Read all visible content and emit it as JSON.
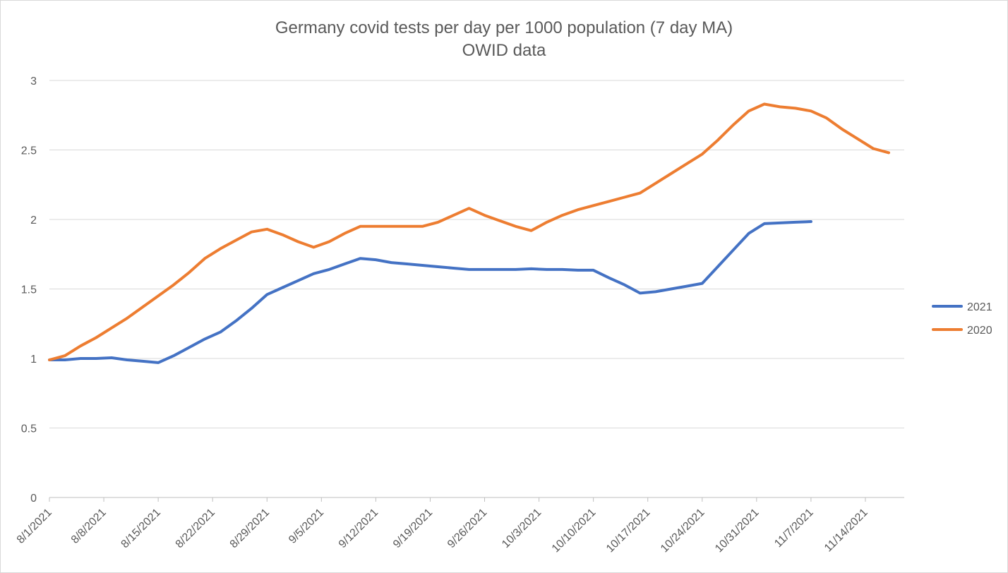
{
  "chart_data": {
    "type": "line",
    "title": "Germany covid tests per day per 1000 population (7 day MA)",
    "subtitle": "OWID data",
    "xlabel": "",
    "ylabel": "",
    "ylim": [
      0,
      3
    ],
    "yticks": [
      "0",
      "0.5",
      "1",
      "1.5",
      "2",
      "2.5",
      "3"
    ],
    "grid": true,
    "legend_position": "right",
    "x_categories": [
      "8/1/2021",
      "8/8/2021",
      "8/15/2021",
      "8/22/2021",
      "8/29/2021",
      "9/5/2021",
      "9/12/2021",
      "9/19/2021",
      "9/26/2021",
      "10/3/2021",
      "10/10/2021",
      "10/17/2021",
      "10/24/2021",
      "10/31/2021",
      "11/7/2021",
      "11/14/2021"
    ],
    "day_count": 110,
    "series": [
      {
        "name": "2021",
        "color": "#4472c4",
        "points": [
          [
            0,
            0.99
          ],
          [
            2,
            0.99
          ],
          [
            4,
            1.0
          ],
          [
            6,
            1.0
          ],
          [
            8,
            1.005
          ],
          [
            10,
            0.99
          ],
          [
            12,
            0.98
          ],
          [
            14,
            0.97
          ],
          [
            16,
            1.02
          ],
          [
            18,
            1.08
          ],
          [
            20,
            1.14
          ],
          [
            22,
            1.19
          ],
          [
            24,
            1.27
          ],
          [
            26,
            1.36
          ],
          [
            28,
            1.46
          ],
          [
            30,
            1.51
          ],
          [
            32,
            1.56
          ],
          [
            34,
            1.61
          ],
          [
            36,
            1.64
          ],
          [
            38,
            1.68
          ],
          [
            40,
            1.72
          ],
          [
            42,
            1.71
          ],
          [
            44,
            1.69
          ],
          [
            46,
            1.68
          ],
          [
            48,
            1.67
          ],
          [
            50,
            1.66
          ],
          [
            52,
            1.65
          ],
          [
            54,
            1.64
          ],
          [
            56,
            1.64
          ],
          [
            58,
            1.64
          ],
          [
            60,
            1.64
          ],
          [
            62,
            1.645
          ],
          [
            64,
            1.64
          ],
          [
            66,
            1.64
          ],
          [
            68,
            1.635
          ],
          [
            70,
            1.635
          ],
          [
            72,
            1.58
          ],
          [
            74,
            1.53
          ],
          [
            76,
            1.47
          ],
          [
            78,
            1.48
          ],
          [
            80,
            1.5
          ],
          [
            82,
            1.52
          ],
          [
            84,
            1.54
          ],
          [
            86,
            1.66
          ],
          [
            88,
            1.78
          ],
          [
            90,
            1.9
          ],
          [
            92,
            1.97
          ],
          [
            94,
            1.975
          ],
          [
            96,
            1.98
          ],
          [
            98,
            1.985
          ]
        ]
      },
      {
        "name": "2020",
        "color": "#ed7d31",
        "points": [
          [
            0,
            0.99
          ],
          [
            2,
            1.02
          ],
          [
            4,
            1.09
          ],
          [
            6,
            1.15
          ],
          [
            8,
            1.22
          ],
          [
            10,
            1.29
          ],
          [
            12,
            1.37
          ],
          [
            14,
            1.45
          ],
          [
            16,
            1.53
          ],
          [
            18,
            1.62
          ],
          [
            20,
            1.72
          ],
          [
            22,
            1.79
          ],
          [
            24,
            1.85
          ],
          [
            26,
            1.91
          ],
          [
            28,
            1.93
          ],
          [
            30,
            1.89
          ],
          [
            32,
            1.84
          ],
          [
            34,
            1.8
          ],
          [
            36,
            1.84
          ],
          [
            38,
            1.9
          ],
          [
            40,
            1.95
          ],
          [
            42,
            1.95
          ],
          [
            44,
            1.95
          ],
          [
            46,
            1.95
          ],
          [
            48,
            1.95
          ],
          [
            50,
            1.98
          ],
          [
            52,
            2.03
          ],
          [
            54,
            2.08
          ],
          [
            56,
            2.03
          ],
          [
            58,
            1.99
          ],
          [
            60,
            1.95
          ],
          [
            62,
            1.92
          ],
          [
            64,
            1.98
          ],
          [
            66,
            2.03
          ],
          [
            68,
            2.07
          ],
          [
            70,
            2.1
          ],
          [
            72,
            2.13
          ],
          [
            74,
            2.16
          ],
          [
            76,
            2.19
          ],
          [
            78,
            2.26
          ],
          [
            80,
            2.33
          ],
          [
            82,
            2.4
          ],
          [
            84,
            2.47
          ],
          [
            86,
            2.57
          ],
          [
            88,
            2.68
          ],
          [
            90,
            2.78
          ],
          [
            92,
            2.83
          ],
          [
            94,
            2.81
          ],
          [
            96,
            2.8
          ],
          [
            98,
            2.78
          ],
          [
            100,
            2.73
          ],
          [
            102,
            2.65
          ],
          [
            104,
            2.58
          ],
          [
            106,
            2.51
          ],
          [
            108,
            2.48
          ]
        ]
      }
    ]
  }
}
